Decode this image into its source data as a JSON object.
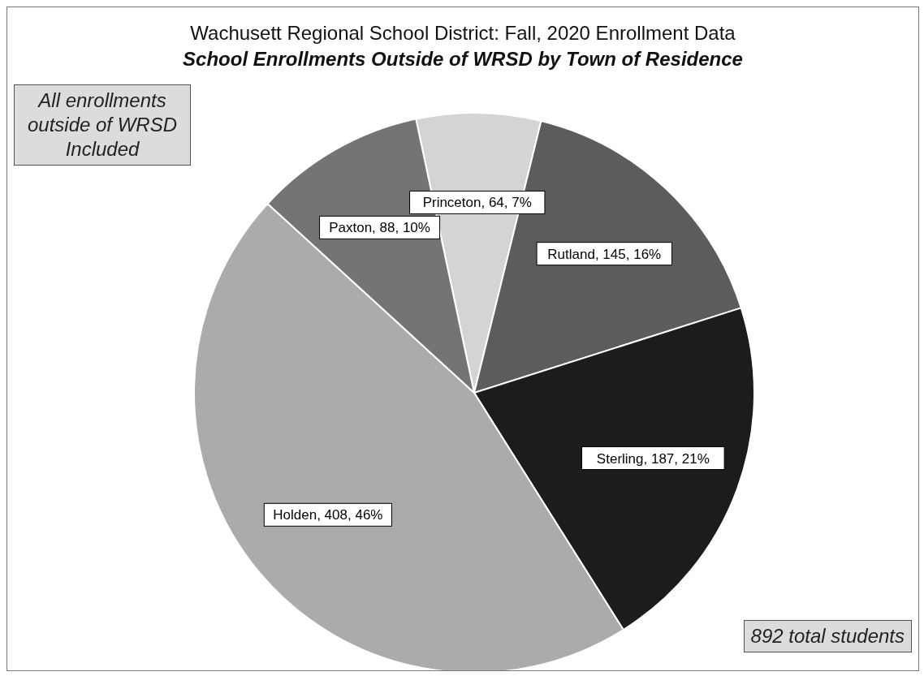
{
  "chart_data": {
    "type": "pie",
    "title": "Wachusett Regional School District: Fall, 2020 Enrollment Data",
    "subtitle": "School Enrollments Outside of WRSD by Town of Residence",
    "categories": [
      "Princeton",
      "Rutland",
      "Sterling",
      "Holden",
      "Paxton"
    ],
    "values": [
      64,
      145,
      187,
      408,
      88
    ],
    "colors": [
      "#d4d4d4",
      "#5c5c5c",
      "#1c1c1c",
      "#ababab",
      "#747474"
    ],
    "value_labels": [
      ", 64, 7%",
      ", 145, 16%",
      ", 187, 21%",
      ", 408, 46%",
      ", 88, 10%"
    ],
    "annotations": [
      "All enrollments outside of WRSD Included",
      "892 total students"
    ],
    "legend": false
  }
}
